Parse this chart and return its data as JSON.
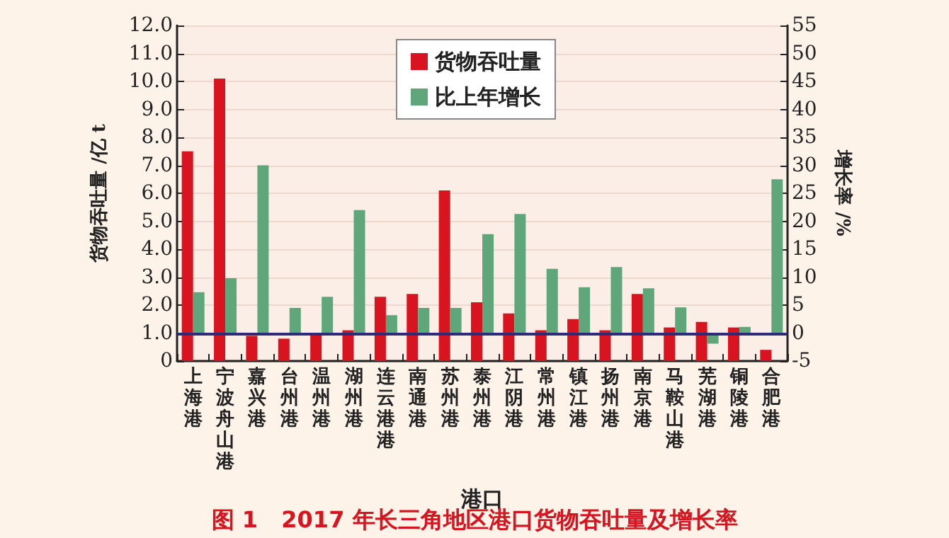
{
  "chart_data": {
    "type": "bar",
    "title": "图 1   2017 年长三角地区港口货物吞吐量及增长率",
    "xlabel": "港口",
    "ylabel": "货物吞吐量 /亿 t",
    "y2label": "增长率 /%",
    "categories": [
      "上海港",
      "宁波舟山港",
      "嘉兴港",
      "台州港",
      "温州港",
      "湖州港",
      "连云港港",
      "南通港",
      "苏州港",
      "泰州港",
      "江阴港",
      "常州港",
      "镇江港",
      "扬州港",
      "南京港",
      "马鞍山港",
      "芜湖港",
      "铜陵港",
      "合肥港"
    ],
    "series": [
      {
        "name": "货物吞吐量",
        "color": "#d7141f",
        "values": [
          7.5,
          10.1,
          0.9,
          0.8,
          1.0,
          1.1,
          2.3,
          2.4,
          6.1,
          2.1,
          1.7,
          1.1,
          1.5,
          1.1,
          2.4,
          1.2,
          1.4,
          1.2,
          0.4
        ]
      },
      {
        "name": "比上年增长",
        "color": "#5fa77a",
        "axis": "y2",
        "values": [
          7.3,
          9.8,
          30,
          4.5,
          6.5,
          22,
          3.2,
          4.5,
          4.5,
          17.7,
          21.3,
          11.5,
          8.2,
          11.8,
          8.0,
          4.6,
          -1.9,
          1.1,
          27.5
        ]
      }
    ],
    "ylim": [
      0,
      12
    ],
    "yticks": [
      0,
      {
        "value": 1,
        "label": "1.0"
      },
      {
        "value": 2,
        "label": "2.0"
      },
      {
        "value": 3,
        "label": "3.0"
      },
      {
        "value": 4,
        "label": "4.0"
      },
      {
        "value": 5,
        "label": "5.0"
      },
      {
        "value": 6,
        "label": "6.0"
      },
      {
        "value": 7,
        "label": "7.0"
      },
      {
        "value": 8,
        "label": "8.0"
      },
      {
        "value": 9,
        "label": "9.0"
      },
      {
        "value": 10,
        "label": "10.0"
      },
      {
        "value": 11,
        "label": "11.0"
      },
      {
        "value": 12,
        "label": "12.0"
      }
    ],
    "y2lim": [
      -5,
      55
    ],
    "y2ticks": [
      -5,
      0,
      5,
      10,
      15,
      20,
      25,
      30,
      35,
      40,
      45,
      50,
      55
    ],
    "ref_lines": [
      {
        "axis": "y2",
        "value": 0,
        "color": "#2b2b7a"
      }
    ],
    "grid": "y",
    "legend": "top"
  }
}
